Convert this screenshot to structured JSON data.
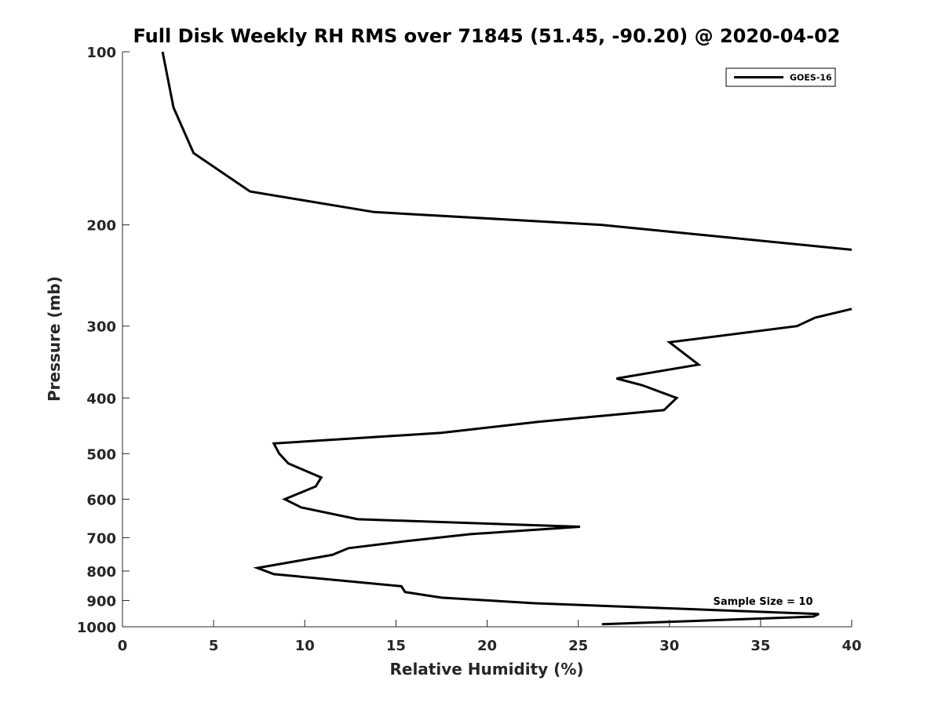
{
  "chart_data": {
    "type": "line",
    "title": "Full Disk Weekly RH RMS over 71845 (51.45, -90.20) @ 2020-04-02",
    "xlabel": "Relative Humidity (%)",
    "ylabel": "Pressure (mb)",
    "xlim": [
      0,
      40
    ],
    "ylim": [
      100,
      1000
    ],
    "y_scale": "log",
    "y_reversed": true,
    "grid": false,
    "legend_position": "top-right",
    "x_ticks": [
      "0",
      "5",
      "10",
      "15",
      "20",
      "25",
      "30",
      "35",
      "40"
    ],
    "y_ticks": [
      "100",
      "200",
      "300",
      "400",
      "500",
      "600",
      "700",
      "800",
      "900",
      "1000"
    ],
    "annotation": "Sample Size = 10",
    "series": [
      {
        "name": "GOES-16",
        "color": "#000000",
        "segments": [
          {
            "x": [
              2.2,
              2.8,
              3.9,
              7.0,
              13.8,
              26.3,
              40.0
            ],
            "y": [
              100,
              125,
              150,
              175,
              190,
              200,
              221
            ]
          },
          {
            "x": [
              40.0,
              38.0,
              37.0,
              30.0,
              31.6,
              27.1,
              28.5,
              30.4,
              29.7,
              22.8,
              17.5,
              8.3,
              8.6,
              9.1,
              10.9,
              10.6,
              8.9,
              9.8,
              12.9,
              25.1,
              19.1,
              15.5,
              12.4,
              11.5,
              7.4,
              8.3,
              15.3,
              15.5,
              17.5,
              22.6,
              38.2,
              37.9,
              26.3
            ],
            "y": [
              280,
              290,
              300,
              320,
              350,
              370,
              380,
              400,
              420,
              440,
              460,
              480,
              500,
              520,
              550,
              570,
              600,
              620,
              650,
              670,
              690,
              710,
              730,
              750,
              790,
              810,
              850,
              870,
              890,
              910,
              950,
              960,
              990
            ]
          }
        ]
      }
    ]
  }
}
